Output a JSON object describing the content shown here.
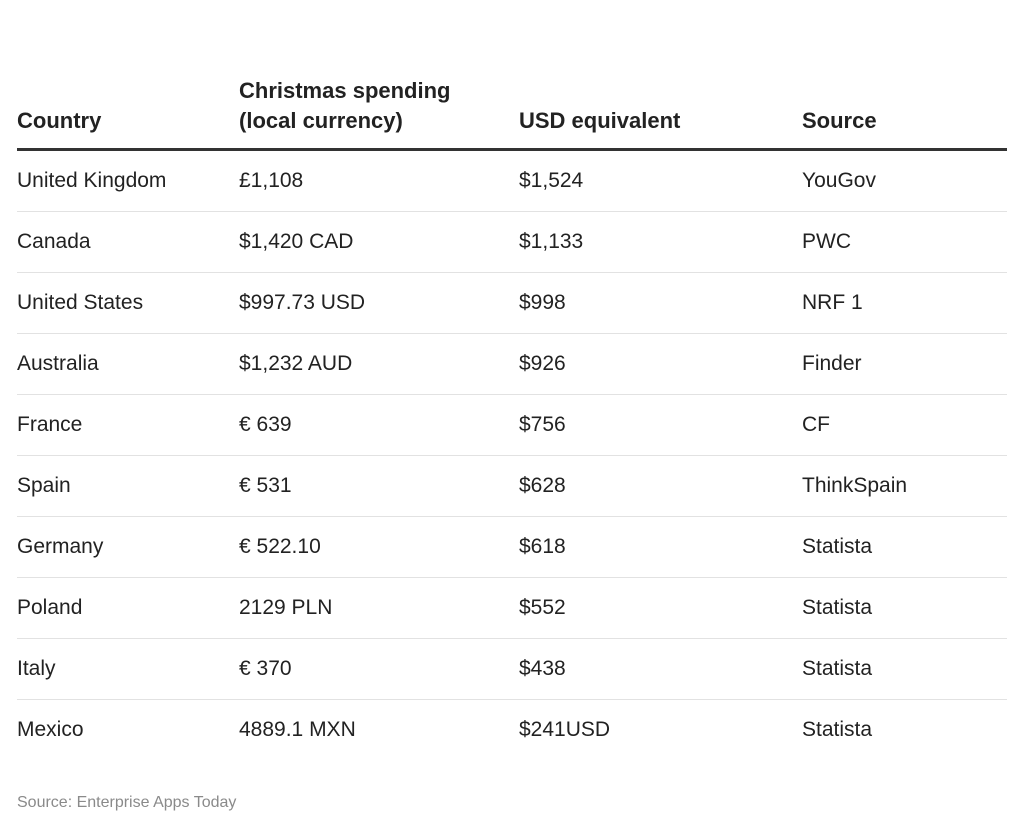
{
  "table": {
    "headers": [
      "Country",
      "Christmas spending (local currency)",
      "USD equivalent",
      "Source"
    ],
    "rows": [
      [
        "United Kingdom",
        "£1,108",
        "$1,524",
        "YouGov"
      ],
      [
        "Canada",
        "$1,420 CAD",
        "$1,133",
        "PWC"
      ],
      [
        "United States",
        "$997.73 USD",
        "$998",
        "NRF 1"
      ],
      [
        "Australia",
        "$1,232 AUD",
        "$926",
        "Finder"
      ],
      [
        "France",
        "€ 639",
        "$756",
        "CF"
      ],
      [
        "Spain",
        "€ 531",
        "$628",
        "ThinkSpain"
      ],
      [
        "Germany",
        "€ 522.10",
        "$618",
        "Statista"
      ],
      [
        "Poland",
        "2129 PLN",
        "$552",
        "Statista"
      ],
      [
        "Italy",
        "€ 370",
        "$438",
        "Statista"
      ],
      [
        "Mexico",
        "4889.1 MXN",
        "$241USD",
        "Statista"
      ]
    ]
  },
  "footer": {
    "source": "Source: Enterprise Apps Today"
  }
}
